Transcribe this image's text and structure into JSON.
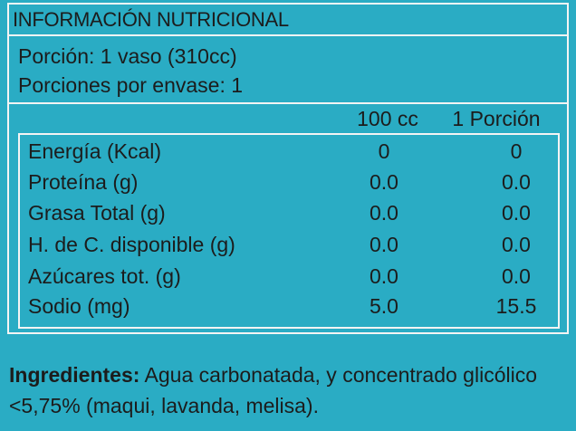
{
  "header": {
    "title": "INFORMACIÓN NUTRICIONAL"
  },
  "serving": {
    "portion": "Porción: 1 vaso (310cc)",
    "per_container": "Porciones por envase: 1"
  },
  "columns": {
    "per_100": "100 cc",
    "per_portion": "1 Porción"
  },
  "rows": [
    {
      "label": "Energía (Kcal)",
      "v100": "0",
      "vportion": "0"
    },
    {
      "label": "Proteína (g)",
      "v100": "0.0",
      "vportion": "0.0"
    },
    {
      "label": "Grasa Total (g)",
      "v100": "0.0",
      "vportion": "0.0"
    },
    {
      "label": "H. de C. disponible (g)",
      "v100": "0.0",
      "vportion": "0.0"
    },
    {
      "label": "Azúcares tot. (g)",
      "v100": "0.0",
      "vportion": "0.0"
    },
    {
      "label": "Sodio (mg)",
      "v100": "5.0",
      "vportion": "15.5"
    }
  ],
  "ingredients": {
    "heading": "Ingredientes:",
    "text": " Agua carbonatada, y concentrado glicólico <5,75% (maqui, lavanda, melisa)."
  }
}
